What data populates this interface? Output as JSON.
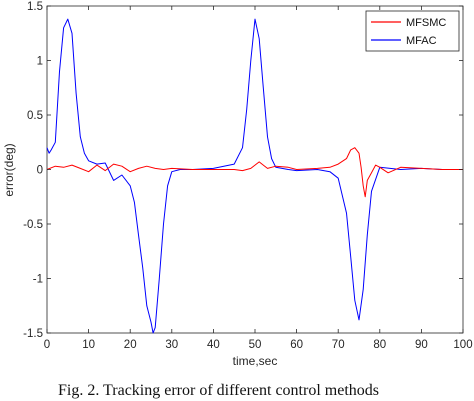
{
  "caption": "Fig. 2. Tracking error of different control methods",
  "chart_data": {
    "type": "line",
    "xlabel": "time,sec",
    "ylabel": "error(deg)",
    "xlim": [
      0,
      100
    ],
    "ylim": [
      -1.5,
      1.5
    ],
    "xticks": [
      0,
      10,
      20,
      30,
      40,
      50,
      60,
      70,
      80,
      90,
      100
    ],
    "xtick_labels": [
      "0",
      "10",
      "20",
      "30",
      "40",
      "50",
      "60",
      "70",
      "80",
      "90",
      "100"
    ],
    "yticks": [
      -1.5,
      -1,
      -0.5,
      0,
      0.5,
      1,
      1.5
    ],
    "ytick_labels": [
      "-1.5",
      "-1",
      "-0.5",
      "0",
      "0.5",
      "1",
      "1.5"
    ],
    "grid": false,
    "legend_position": "top-right",
    "series": [
      {
        "name": "MFSMC",
        "color": "#ff0000",
        "x": [
          0,
          2,
          4,
          6,
          8,
          10,
          12,
          14,
          16,
          18,
          20,
          22,
          24,
          26,
          28,
          30,
          35,
          40,
          45,
          47,
          49,
          50,
          51,
          52,
          53,
          55,
          58,
          60,
          65,
          68,
          70,
          72,
          73,
          74,
          75,
          75.5,
          76,
          76.5,
          77,
          78,
          79,
          80,
          82,
          85,
          90,
          95,
          100
        ],
        "y": [
          0,
          0.03,
          0.02,
          0.04,
          0.01,
          -0.02,
          0.04,
          -0.01,
          0.05,
          0.03,
          -0.02,
          0.01,
          0.03,
          0.01,
          0,
          0.01,
          0,
          0,
          0,
          -0.01,
          0.01,
          0.04,
          0.07,
          0.04,
          0.01,
          0.03,
          0.02,
          0,
          0.01,
          0.02,
          0.05,
          0.1,
          0.18,
          0.2,
          0.15,
          0.02,
          -0.15,
          -0.25,
          -0.1,
          -0.03,
          0.04,
          0.02,
          -0.03,
          0.02,
          0.01,
          0,
          0
        ]
      },
      {
        "name": "MFAC",
        "color": "#0000ff",
        "x": [
          0,
          0.5,
          1,
          2,
          3,
          4,
          5,
          6,
          7,
          8,
          9,
          10,
          12,
          14,
          16,
          18,
          20,
          21,
          22,
          23,
          24,
          25,
          25.5,
          26,
          27,
          28,
          29,
          30,
          32,
          35,
          40,
          45,
          47,
          48,
          49,
          50,
          51,
          52,
          53,
          54,
          55,
          58,
          60,
          65,
          68,
          70,
          72,
          73,
          74,
          75,
          76,
          77,
          78,
          80,
          85,
          90,
          95,
          100
        ],
        "y": [
          0.2,
          0.15,
          0.18,
          0.25,
          0.9,
          1.3,
          1.38,
          1.25,
          0.7,
          0.3,
          0.15,
          0.08,
          0.05,
          0.06,
          -0.1,
          -0.05,
          -0.15,
          -0.3,
          -0.6,
          -0.9,
          -1.25,
          -1.4,
          -1.5,
          -1.45,
          -1.0,
          -0.5,
          -0.15,
          -0.02,
          0,
          0,
          0.01,
          0.05,
          0.2,
          0.55,
          1.0,
          1.38,
          1.2,
          0.75,
          0.3,
          0.1,
          0.02,
          0,
          -0.01,
          0,
          -0.02,
          -0.08,
          -0.4,
          -0.8,
          -1.2,
          -1.38,
          -1.1,
          -0.6,
          -0.2,
          0.02,
          0,
          0.01,
          0,
          0
        ]
      }
    ]
  }
}
